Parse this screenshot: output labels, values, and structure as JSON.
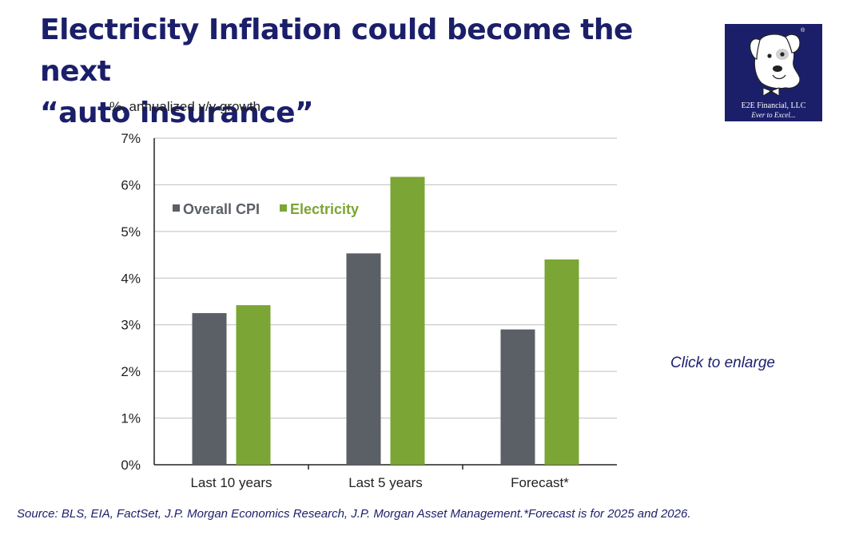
{
  "page": {
    "title_line1": "Electricity Inflation could become the next",
    "title_line2": "“auto insurance”",
    "click_to_enlarge": "Click to enlarge",
    "source": "Source: BLS, EIA, FactSet, J.P. Morgan Economics Research, J.P. Morgan Asset Management.*Forecast is for 2025 and 2026."
  },
  "logo": {
    "name": "E2E Financial, LLC",
    "tagline": "Ever to Excel...",
    "registered_mark": "®",
    "background_color": "#1b1f6a"
  },
  "chart_data": {
    "type": "bar",
    "unit_label": "%, annualized y/y growth",
    "categories": [
      "Last 10 years",
      "Last 5 years",
      "Forecast*"
    ],
    "series": [
      {
        "name": "Overall CPI",
        "color": "#5b5f66",
        "values": [
          3.25,
          4.53,
          2.9
        ]
      },
      {
        "name": "Electricity",
        "color": "#7ba534",
        "values": [
          3.42,
          6.17,
          4.4
        ]
      }
    ],
    "ylim": [
      0,
      7
    ],
    "yticks": [
      0,
      1,
      2,
      3,
      4,
      5,
      6,
      7
    ],
    "ytick_labels": [
      "0%",
      "1%",
      "2%",
      "3%",
      "4%",
      "5%",
      "6%",
      "7%"
    ],
    "grid": true,
    "legend_position": "top-left",
    "title": "",
    "xlabel": "",
    "ylabel": ""
  }
}
